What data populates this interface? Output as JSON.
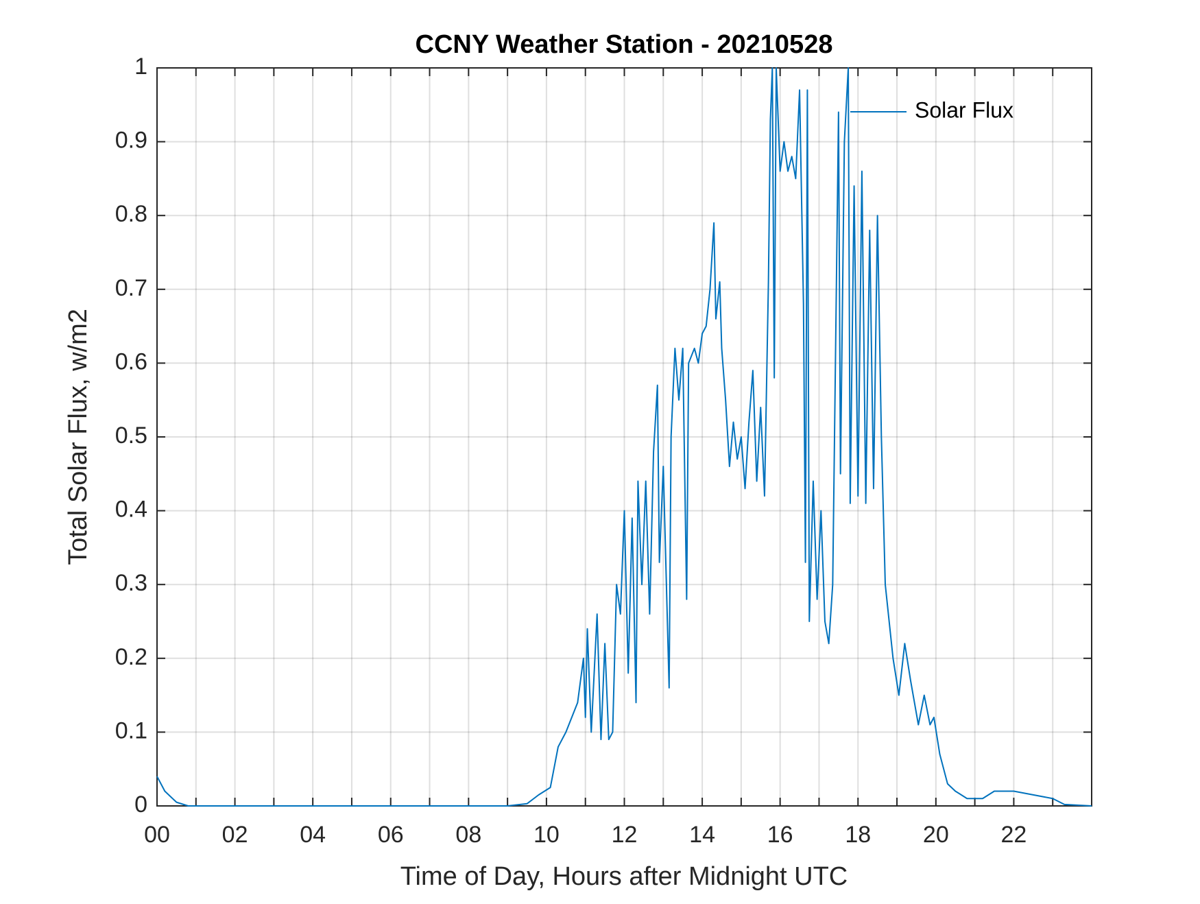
{
  "chart_data": {
    "type": "line",
    "title": "CCNY Weather Station - 20210528",
    "x_label": "Time of Day, Hours after Midnight UTC",
    "y_label": "Total Solar Flux, w/m2",
    "xlim": [
      0,
      24
    ],
    "ylim": [
      0,
      1
    ],
    "xticks": [
      {
        "value": 0,
        "label": "00"
      },
      {
        "value": 2,
        "label": "02"
      },
      {
        "value": 4,
        "label": "04"
      },
      {
        "value": 6,
        "label": "06"
      },
      {
        "value": 8,
        "label": "08"
      },
      {
        "value": 10,
        "label": "10"
      },
      {
        "value": 12,
        "label": "12"
      },
      {
        "value": 14,
        "label": "14"
      },
      {
        "value": 16,
        "label": "16"
      },
      {
        "value": 18,
        "label": "18"
      },
      {
        "value": 20,
        "label": "20"
      },
      {
        "value": 22,
        "label": "22"
      }
    ],
    "x_minor_ticks": [
      1,
      3,
      5,
      7,
      9,
      11,
      13,
      15,
      17,
      19,
      21,
      23
    ],
    "yticks": [
      0,
      0.1,
      0.2,
      0.3,
      0.4,
      0.5,
      0.6,
      0.7,
      0.8,
      0.9,
      1
    ],
    "grid": true,
    "legend": "northeast",
    "x": [
      0,
      0.2,
      0.5,
      0.8,
      9.0,
      9.5,
      9.8,
      10.1,
      10.3,
      10.5,
      10.8,
      10.95,
      11.0,
      11.05,
      11.15,
      11.3,
      11.4,
      11.5,
      11.6,
      11.7,
      11.8,
      11.9,
      12.0,
      12.1,
      12.2,
      12.3,
      12.35,
      12.45,
      12.55,
      12.65,
      12.75,
      12.85,
      12.9,
      13.0,
      13.1,
      13.15,
      13.2,
      13.3,
      13.4,
      13.5,
      13.6,
      13.65,
      13.8,
      13.9,
      14.0,
      14.1,
      14.2,
      14.3,
      14.35,
      14.45,
      14.5,
      14.6,
      14.7,
      14.8,
      14.9,
      15.0,
      15.1,
      15.2,
      15.3,
      15.4,
      15.5,
      15.6,
      15.7,
      15.75,
      15.8,
      15.85,
      15.9,
      16.0,
      16.1,
      16.2,
      16.3,
      16.4,
      16.5,
      16.6,
      16.65,
      16.7,
      16.75,
      16.85,
      16.95,
      17.05,
      17.15,
      17.25,
      17.35,
      17.5,
      17.55,
      17.65,
      17.75,
      17.8,
      17.9,
      18.0,
      18.1,
      18.2,
      18.3,
      18.4,
      18.5,
      18.6,
      18.7,
      18.9,
      19.05,
      19.2,
      19.35,
      19.55,
      19.7,
      19.85,
      19.95,
      20.1,
      20.3,
      20.5,
      20.8,
      21.2,
      21.5,
      22.0,
      22.5,
      23.0,
      23.3,
      24.0
    ],
    "series": [
      {
        "name": "Solar Flux",
        "color": "#0072bd",
        "values": [
          0.04,
          0.02,
          0.005,
          0,
          0,
          0.003,
          0.015,
          0.025,
          0.08,
          0.1,
          0.14,
          0.2,
          0.12,
          0.24,
          0.1,
          0.26,
          0.09,
          0.22,
          0.09,
          0.1,
          0.3,
          0.26,
          0.4,
          0.18,
          0.39,
          0.14,
          0.44,
          0.3,
          0.44,
          0.26,
          0.48,
          0.57,
          0.33,
          0.46,
          0.26,
          0.16,
          0.5,
          0.62,
          0.55,
          0.62,
          0.28,
          0.6,
          0.62,
          0.6,
          0.64,
          0.65,
          0.7,
          0.79,
          0.66,
          0.71,
          0.62,
          0.55,
          0.46,
          0.52,
          0.47,
          0.5,
          0.43,
          0.52,
          0.59,
          0.44,
          0.54,
          0.42,
          0.71,
          0.93,
          1.0,
          0.58,
          1.0,
          0.86,
          0.9,
          0.86,
          0.88,
          0.85,
          0.97,
          0.68,
          0.33,
          0.97,
          0.25,
          0.44,
          0.28,
          0.4,
          0.25,
          0.22,
          0.3,
          0.94,
          0.45,
          0.9,
          1.0,
          0.41,
          0.84,
          0.42,
          0.86,
          0.41,
          0.78,
          0.43,
          0.8,
          0.5,
          0.3,
          0.2,
          0.15,
          0.22,
          0.17,
          0.11,
          0.15,
          0.11,
          0.12,
          0.07,
          0.03,
          0.02,
          0.01,
          0.01,
          0.02,
          0.02,
          0.015,
          0.01,
          0.002,
          0
        ]
      }
    ]
  }
}
